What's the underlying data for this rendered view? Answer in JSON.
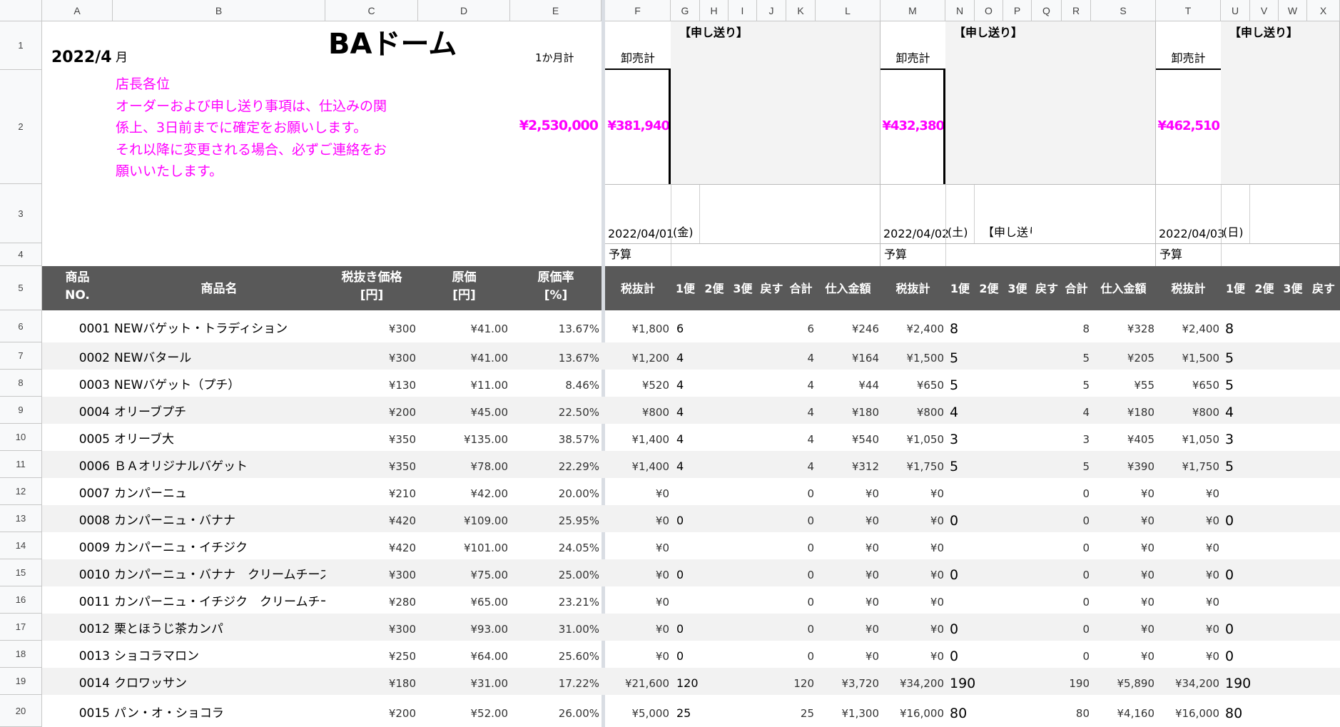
{
  "sheet": {
    "column_letters": [
      "A",
      "B",
      "C",
      "D",
      "E",
      "F",
      "G",
      "H",
      "I",
      "J",
      "K",
      "L",
      "M",
      "N",
      "O",
      "P",
      "Q",
      "R",
      "S",
      "T",
      "U",
      "V",
      "W",
      "X"
    ],
    "row_numbers": [
      "1",
      "2",
      "3",
      "4",
      "5",
      "6",
      "7",
      "8",
      "9",
      "10",
      "11",
      "12",
      "13",
      "14",
      "15",
      "16",
      "17",
      "18",
      "19",
      "20"
    ]
  },
  "header": {
    "year_month": "2022/4",
    "month_suffix": "月",
    "title": "BAドーム",
    "monthly_total_label": "1か月計",
    "notice_lines": [
      "店長各位",
      "オーダーおよび申し送り事項は、仕込みの関",
      "係上、3日前までに確定をお願いします。",
      "それ以降に変更される場合、必ずご連絡をお",
      "願いいたします。"
    ],
    "monthly_total_value": "¥2,530,000",
    "colors": {
      "accent_pink": "#ff00ff",
      "header_band": "#595959"
    }
  },
  "days": [
    {
      "wholesale_label": "卸売計",
      "memo_label": "【申し送り】",
      "total_value": "¥381,940",
      "date": "2022/04/01",
      "weekday": "(金)",
      "memo_text": "",
      "budget_label": "予算"
    },
    {
      "wholesale_label": "卸売計",
      "memo_label": "【申し送り】",
      "total_value": "¥432,380",
      "date": "2022/04/02",
      "weekday": "(土)",
      "memo_text": "【申し送り",
      "budget_label": "予算"
    },
    {
      "wholesale_label": "卸売計",
      "memo_label": "【申し送り】",
      "total_value": "¥462,510",
      "date": "2022/04/03",
      "weekday": "(日)",
      "memo_text": "",
      "budget_label": "予算"
    }
  ],
  "columns": {
    "product_no": "商品\nNO.",
    "product_name": "商品名",
    "price_ex_tax": "税抜き価格\n[円]",
    "cost": "原価\n[円]",
    "cost_rate": "原価率\n[%]",
    "day_cols": [
      "税抜計",
      "1便",
      "2便",
      "3便",
      "戻す",
      "合計",
      "仕入金額"
    ]
  },
  "products": [
    {
      "no": "0001",
      "name": "NEWバゲット・トラディション",
      "price": "¥300",
      "cost": "¥41.00",
      "rate": "13.67%",
      "d1": [
        "¥1,800",
        "6",
        "",
        "",
        "",
        "6",
        "¥246"
      ],
      "d2": [
        "¥2,400",
        "8",
        "",
        "",
        "",
        "8",
        "¥328"
      ],
      "d3": [
        "¥2,400",
        "8"
      ]
    },
    {
      "no": "0002",
      "name": "NEWバタール",
      "price": "¥300",
      "cost": "¥41.00",
      "rate": "13.67%",
      "d1": [
        "¥1,200",
        "4",
        "",
        "",
        "",
        "4",
        "¥164"
      ],
      "d2": [
        "¥1,500",
        "5",
        "",
        "",
        "",
        "5",
        "¥205"
      ],
      "d3": [
        "¥1,500",
        "5"
      ]
    },
    {
      "no": "0003",
      "name": "NEWバゲット（プチ）",
      "price": "¥130",
      "cost": "¥11.00",
      "rate": "8.46%",
      "d1": [
        "¥520",
        "4",
        "",
        "",
        "",
        "4",
        "¥44"
      ],
      "d2": [
        "¥650",
        "5",
        "",
        "",
        "",
        "5",
        "¥55"
      ],
      "d3": [
        "¥650",
        "5"
      ]
    },
    {
      "no": "0004",
      "name": "オリーブプチ",
      "price": "¥200",
      "cost": "¥45.00",
      "rate": "22.50%",
      "d1": [
        "¥800",
        "4",
        "",
        "",
        "",
        "4",
        "¥180"
      ],
      "d2": [
        "¥800",
        "4",
        "",
        "",
        "",
        "4",
        "¥180"
      ],
      "d3": [
        "¥800",
        "4"
      ]
    },
    {
      "no": "0005",
      "name": "オリーブ大",
      "price": "¥350",
      "cost": "¥135.00",
      "rate": "38.57%",
      "d1": [
        "¥1,400",
        "4",
        "",
        "",
        "",
        "4",
        "¥540"
      ],
      "d2": [
        "¥1,050",
        "3",
        "",
        "",
        "",
        "3",
        "¥405"
      ],
      "d3": [
        "¥1,050",
        "3"
      ]
    },
    {
      "no": "0006",
      "name": "ＢＡオリジナルバゲット",
      "price": "¥350",
      "cost": "¥78.00",
      "rate": "22.29%",
      "d1": [
        "¥1,400",
        "4",
        "",
        "",
        "",
        "4",
        "¥312"
      ],
      "d2": [
        "¥1,750",
        "5",
        "",
        "",
        "",
        "5",
        "¥390"
      ],
      "d3": [
        "¥1,750",
        "5"
      ]
    },
    {
      "no": "0007",
      "name": "カンパーニュ",
      "price": "¥210",
      "cost": "¥42.00",
      "rate": "20.00%",
      "d1": [
        "¥0",
        "",
        "",
        "",
        "",
        "0",
        "¥0"
      ],
      "d2": [
        "¥0",
        "",
        "",
        "",
        "",
        "0",
        "¥0"
      ],
      "d3": [
        "¥0",
        ""
      ]
    },
    {
      "no": "0008",
      "name": "カンパーニュ・バナナ",
      "price": "¥420",
      "cost": "¥109.00",
      "rate": "25.95%",
      "d1": [
        "¥0",
        "0",
        "",
        "",
        "",
        "0",
        "¥0"
      ],
      "d2": [
        "¥0",
        "0",
        "",
        "",
        "",
        "0",
        "¥0"
      ],
      "d3": [
        "¥0",
        "0"
      ]
    },
    {
      "no": "0009",
      "name": "カンパーニュ・イチジク",
      "price": "¥420",
      "cost": "¥101.00",
      "rate": "24.05%",
      "d1": [
        "¥0",
        "",
        "",
        "",
        "",
        "0",
        "¥0"
      ],
      "d2": [
        "¥0",
        "",
        "",
        "",
        "",
        "0",
        "¥0"
      ],
      "d3": [
        "¥0",
        ""
      ]
    },
    {
      "no": "0010",
      "name": "カンパーニュ・バナナ　クリームチーズ",
      "price": "¥300",
      "cost": "¥75.00",
      "rate": "25.00%",
      "d1": [
        "¥0",
        "0",
        "",
        "",
        "",
        "0",
        "¥0"
      ],
      "d2": [
        "¥0",
        "0",
        "",
        "",
        "",
        "0",
        "¥0"
      ],
      "d3": [
        "¥0",
        "0"
      ]
    },
    {
      "no": "0011",
      "name": "カンパーニュ・イチジク　クリームチーズ",
      "price": "¥280",
      "cost": "¥65.00",
      "rate": "23.21%",
      "d1": [
        "¥0",
        "",
        "",
        "",
        "",
        "0",
        "¥0"
      ],
      "d2": [
        "¥0",
        "",
        "",
        "",
        "",
        "0",
        "¥0"
      ],
      "d3": [
        "¥0",
        ""
      ]
    },
    {
      "no": "0012",
      "name": "栗とほうじ茶カンパ",
      "price": "¥300",
      "cost": "¥93.00",
      "rate": "31.00%",
      "d1": [
        "¥0",
        "0",
        "",
        "",
        "",
        "0",
        "¥0"
      ],
      "d2": [
        "¥0",
        "0",
        "",
        "",
        "",
        "0",
        "¥0"
      ],
      "d3": [
        "¥0",
        "0"
      ]
    },
    {
      "no": "0013",
      "name": "ショコラマロン",
      "price": "¥250",
      "cost": "¥64.00",
      "rate": "25.60%",
      "d1": [
        "¥0",
        "0",
        "",
        "",
        "",
        "0",
        "¥0"
      ],
      "d2": [
        "¥0",
        "0",
        "",
        "",
        "",
        "0",
        "¥0"
      ],
      "d3": [
        "¥0",
        "0"
      ]
    },
    {
      "no": "0014",
      "name": "クロワッサン",
      "price": "¥180",
      "cost": "¥31.00",
      "rate": "17.22%",
      "d1": [
        "¥21,600",
        "120",
        "",
        "",
        "",
        "120",
        "¥3,720"
      ],
      "d2": [
        "¥34,200",
        "190",
        "",
        "",
        "",
        "190",
        "¥5,890"
      ],
      "d3": [
        "¥34,200",
        "190"
      ]
    },
    {
      "no": "0015",
      "name": "パン・オ・ショコラ",
      "price": "¥200",
      "cost": "¥52.00",
      "rate": "26.00%",
      "d1": [
        "¥5,000",
        "25",
        "",
        "",
        "",
        "25",
        "¥1,300"
      ],
      "d2": [
        "¥16,000",
        "80",
        "",
        "",
        "",
        "80",
        "¥4,160"
      ],
      "d3": [
        "¥16,000",
        "80"
      ]
    }
  ]
}
